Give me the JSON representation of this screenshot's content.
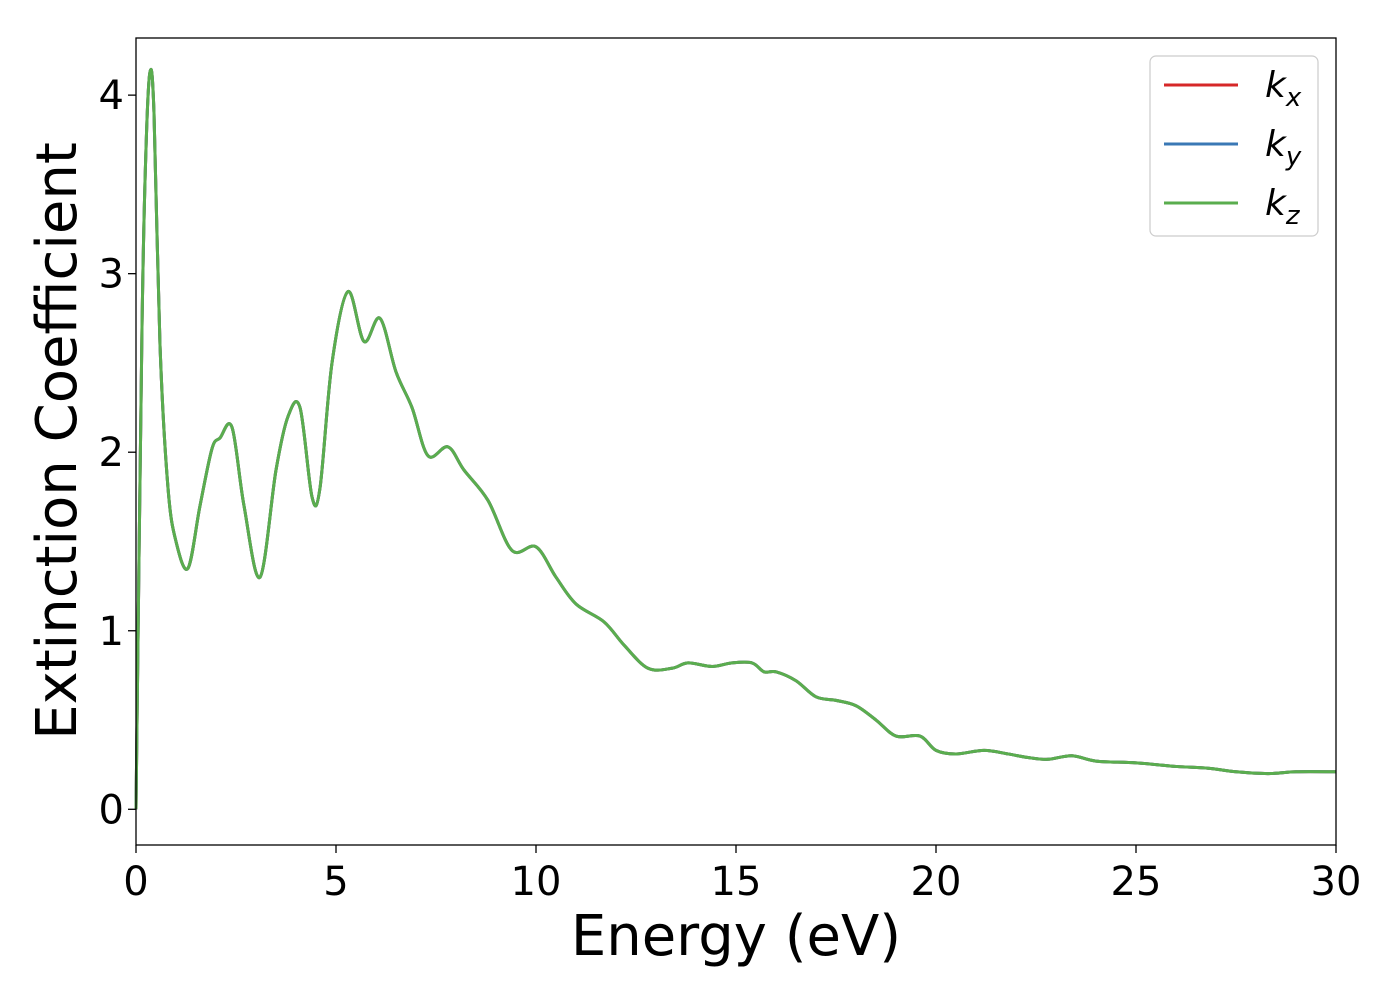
{
  "chart_data": {
    "type": "line",
    "xlabel": "Energy (eV)",
    "ylabel": "Extinction Coefficient",
    "xlim": [
      0,
      30
    ],
    "ylim": [
      -0.2,
      4.32
    ],
    "xticks": [
      0,
      5,
      10,
      15,
      20,
      25,
      30
    ],
    "yticks": [
      0,
      1,
      2,
      3,
      4
    ],
    "grid": false,
    "legend_position": "top-right",
    "x": [
      0,
      0.15,
      0.25,
      0.35,
      0.45,
      0.6,
      0.8,
      1.0,
      1.3,
      1.6,
      1.9,
      2.1,
      2.4,
      2.7,
      3.1,
      3.5,
      3.8,
      4.1,
      4.4,
      4.6,
      4.9,
      5.3,
      5.7,
      6.1,
      6.5,
      6.9,
      7.3,
      7.8,
      8.2,
      8.8,
      9.4,
      10.0,
      10.5,
      11.0,
      11.7,
      12.2,
      12.8,
      13.4,
      13.8,
      14.4,
      14.9,
      15.4,
      15.7,
      16.0,
      16.5,
      17.0,
      17.5,
      18.0,
      18.5,
      19.0,
      19.6,
      20.0,
      20.5,
      21.2,
      21.8,
      22.3,
      22.8,
      23.4,
      24.0,
      25.0,
      26.0,
      26.8,
      27.5,
      28.3,
      29.0,
      30.0
    ],
    "series": [
      {
        "name": "k_x",
        "color": "#d62728",
        "y": [
          0,
          2.7,
          3.7,
          4.13,
          3.9,
          2.6,
          1.8,
          1.5,
          1.35,
          1.7,
          2.02,
          2.08,
          2.14,
          1.7,
          1.3,
          1.9,
          2.2,
          2.25,
          1.75,
          1.8,
          2.5,
          2.9,
          2.62,
          2.75,
          2.45,
          2.25,
          1.98,
          2.03,
          1.9,
          1.73,
          1.45,
          1.47,
          1.3,
          1.15,
          1.05,
          0.92,
          0.79,
          0.79,
          0.82,
          0.8,
          0.82,
          0.82,
          0.77,
          0.77,
          0.72,
          0.63,
          0.61,
          0.58,
          0.5,
          0.41,
          0.41,
          0.33,
          0.31,
          0.33,
          0.31,
          0.29,
          0.28,
          0.3,
          0.27,
          0.26,
          0.24,
          0.23,
          0.21,
          0.2,
          0.21,
          0.21
        ]
      },
      {
        "name": "k_y",
        "color": "#3a78b5",
        "y": [
          0,
          2.7,
          3.7,
          4.13,
          3.9,
          2.6,
          1.8,
          1.5,
          1.35,
          1.7,
          2.02,
          2.08,
          2.14,
          1.7,
          1.3,
          1.9,
          2.2,
          2.25,
          1.75,
          1.8,
          2.5,
          2.9,
          2.62,
          2.75,
          2.45,
          2.25,
          1.98,
          2.03,
          1.9,
          1.73,
          1.45,
          1.47,
          1.3,
          1.15,
          1.05,
          0.92,
          0.79,
          0.79,
          0.82,
          0.8,
          0.82,
          0.82,
          0.77,
          0.77,
          0.72,
          0.63,
          0.61,
          0.58,
          0.5,
          0.41,
          0.41,
          0.33,
          0.31,
          0.33,
          0.31,
          0.29,
          0.28,
          0.3,
          0.27,
          0.26,
          0.24,
          0.23,
          0.21,
          0.2,
          0.21,
          0.21
        ]
      },
      {
        "name": "k_z",
        "color": "#5aad4e",
        "y": [
          0,
          2.7,
          3.7,
          4.13,
          3.9,
          2.6,
          1.8,
          1.5,
          1.35,
          1.7,
          2.02,
          2.08,
          2.14,
          1.7,
          1.3,
          1.9,
          2.2,
          2.25,
          1.75,
          1.8,
          2.5,
          2.9,
          2.62,
          2.75,
          2.45,
          2.25,
          1.98,
          2.03,
          1.9,
          1.73,
          1.45,
          1.47,
          1.3,
          1.15,
          1.05,
          0.92,
          0.79,
          0.79,
          0.82,
          0.8,
          0.82,
          0.82,
          0.77,
          0.77,
          0.72,
          0.63,
          0.61,
          0.58,
          0.5,
          0.41,
          0.41,
          0.33,
          0.31,
          0.33,
          0.31,
          0.29,
          0.28,
          0.3,
          0.27,
          0.26,
          0.24,
          0.23,
          0.21,
          0.2,
          0.21,
          0.21
        ]
      }
    ],
    "legend": [
      {
        "main": "k",
        "sub": "x"
      },
      {
        "main": "k",
        "sub": "y"
      },
      {
        "main": "k",
        "sub": "z"
      }
    ]
  }
}
